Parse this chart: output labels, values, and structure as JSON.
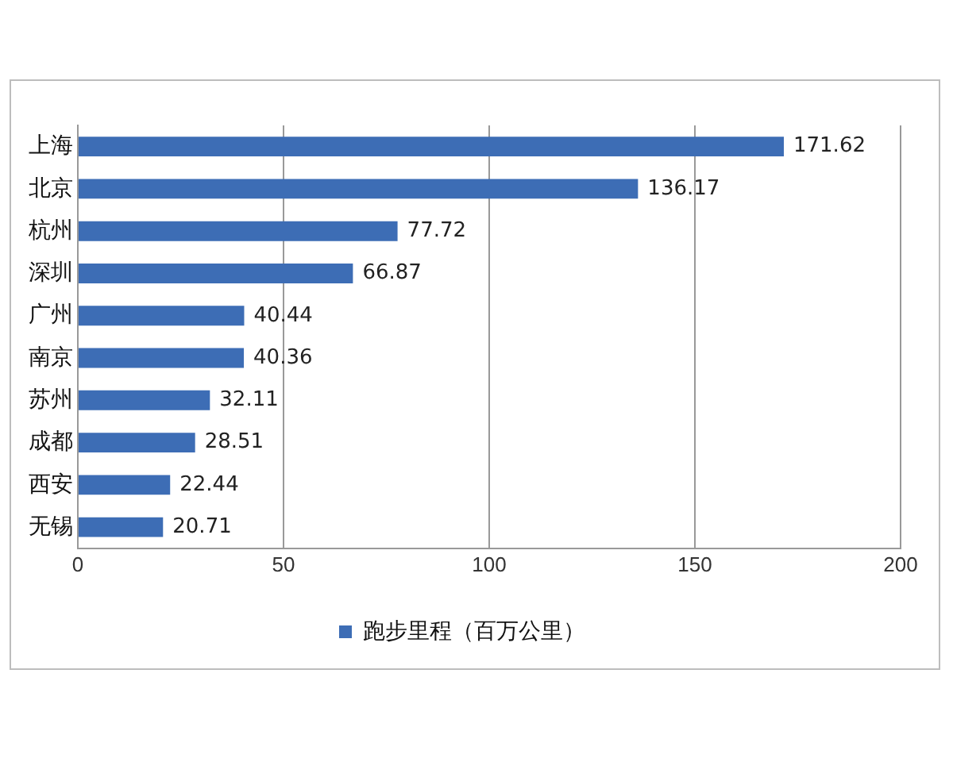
{
  "chart_data": {
    "type": "bar",
    "orientation": "horizontal",
    "categories": [
      "上海",
      "北京",
      "杭州",
      "深圳",
      "广州",
      "南京",
      "苏州",
      "成都",
      "西安",
      "无锡"
    ],
    "series": [
      {
        "name": "跑步里程（百万公里）",
        "color": "#3d6db5",
        "values": [
          171.62,
          136.17,
          77.72,
          66.87,
          40.44,
          40.36,
          32.11,
          28.51,
          22.44,
          20.71
        ]
      }
    ],
    "xlim": [
      0,
      200
    ],
    "xticks": [
      0,
      50,
      100,
      150,
      200
    ],
    "grid": "x",
    "legend": "bottom",
    "data_labels": true
  }
}
